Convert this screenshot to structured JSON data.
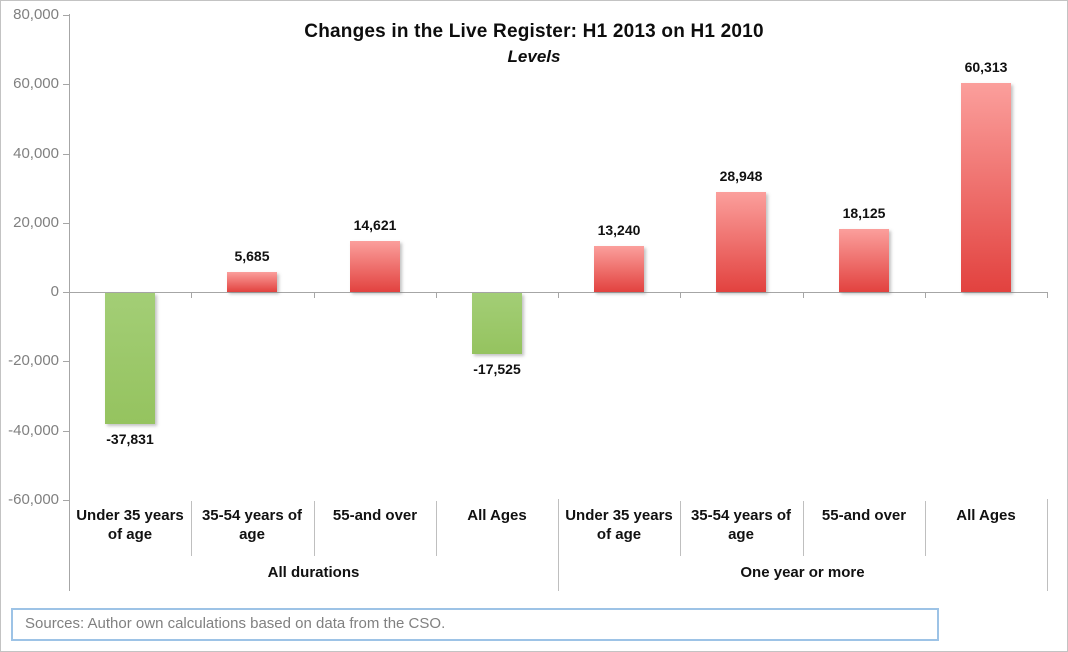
{
  "chart_data": {
    "type": "bar",
    "title": "Changes in the Live Register: H1 2013 on H1 2010",
    "subtitle": "Levels",
    "groups": [
      {
        "label": "All durations",
        "categories": [
          "Under 35 years of age",
          "35-54 years of age",
          "55-and over",
          "All Ages"
        ],
        "values": [
          -37831,
          5685,
          14621,
          -17525
        ],
        "value_labels": [
          "-37,831",
          "5,685",
          "14,621",
          "-17,525"
        ]
      },
      {
        "label": "One year or more",
        "categories": [
          "Under 35 years of age",
          "35-54 years of age",
          "55-and over",
          "All Ages"
        ],
        "values": [
          13240,
          28948,
          18125,
          60313
        ],
        "value_labels": [
          "13,240",
          "28,948",
          "18,125",
          "60,313"
        ]
      }
    ],
    "ylim": [
      -60000,
      80000
    ],
    "y_tick_step": 20000,
    "y_tick_labels": [
      "80,000",
      "60,000",
      "40,000",
      "20,000",
      "0",
      "-20,000",
      "-40,000",
      "-60,000"
    ],
    "y_tick_values": [
      80000,
      60000,
      40000,
      20000,
      0,
      -20000,
      -40000,
      -60000
    ],
    "grid": false,
    "legend": "none",
    "colors": {
      "positive_bar_top": "#fb9f9c",
      "positive_bar_bottom": "#e2423f",
      "negative_bar_top": "#a3ce76",
      "negative_bar_bottom": "#95c35f",
      "axis_line": "#a6a6a6",
      "separator_line": "#bfbfbf",
      "tick_label": "#808080",
      "value_label": "#111111",
      "source_border": "#9dc3e6",
      "source_text": "#808080"
    }
  },
  "source": {
    "text": "Sources: Author own calculations based on data from the CSO."
  }
}
